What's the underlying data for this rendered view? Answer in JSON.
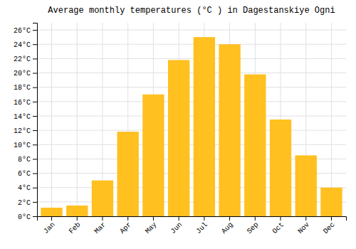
{
  "chart_data": {
    "type": "bar",
    "title": "Average monthly temperatures (°C ) in Dagestanskiye Ogni",
    "categories": [
      "Jan",
      "Feb",
      "Mar",
      "Apr",
      "May",
      "Jun",
      "Jul",
      "Aug",
      "Sep",
      "Oct",
      "Nov",
      "Dec"
    ],
    "values": [
      1.2,
      1.5,
      5.0,
      11.8,
      17.0,
      21.8,
      25.0,
      24.0,
      19.8,
      13.5,
      8.5,
      4.0
    ],
    "color": "#FFC020",
    "ylim": [
      0,
      27
    ],
    "yticks": [
      {
        "value": 0,
        "label": "0°C"
      },
      {
        "value": 2,
        "label": "2°C"
      },
      {
        "value": 4,
        "label": "4°C"
      },
      {
        "value": 6,
        "label": "6°C"
      },
      {
        "value": 8,
        "label": "8°C"
      },
      {
        "value": 10,
        "label": "10°C"
      },
      {
        "value": 12,
        "label": "12°C"
      },
      {
        "value": 14,
        "label": "14°C"
      },
      {
        "value": 16,
        "label": "16°C"
      },
      {
        "value": 18,
        "label": "18°C"
      },
      {
        "value": 20,
        "label": "20°C"
      },
      {
        "value": 22,
        "label": "22°C"
      },
      {
        "value": 24,
        "label": "24°C"
      },
      {
        "value": 26,
        "label": "26°C"
      }
    ],
    "grid": true
  }
}
